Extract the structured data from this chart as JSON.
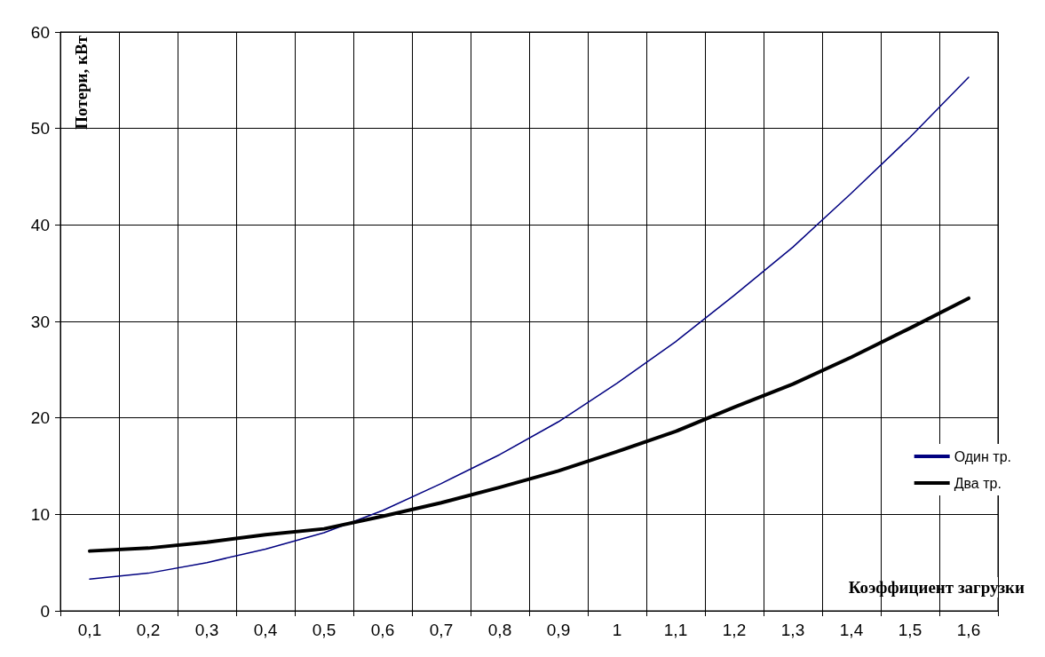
{
  "chart_data": {
    "type": "line",
    "xlabel": "Коэффициент загрузки",
    "ylabel": "Потери, кВт",
    "categories": [
      "0,1",
      "0,2",
      "0,3",
      "0,4",
      "0,5",
      "0,6",
      "0,7",
      "0,8",
      "0,9",
      "1",
      "1,1",
      "1,2",
      "1,3",
      "1,4",
      "1,5",
      "1,6"
    ],
    "series": [
      {
        "name": "Один тр.",
        "color": "#000080",
        "values": [
          3.3,
          3.9,
          5.0,
          6.4,
          8.1,
          10.4,
          13.2,
          16.2,
          19.6,
          23.6,
          27.9,
          32.7,
          37.7,
          43.3,
          49.1,
          55.3
        ]
      },
      {
        "name": "Два тр.",
        "color": "#000000",
        "values": [
          6.2,
          6.5,
          7.1,
          7.9,
          8.5,
          9.8,
          11.2,
          12.8,
          14.5,
          16.5,
          18.6,
          21.1,
          23.5,
          26.3,
          29.3,
          32.4
        ]
      }
    ],
    "ylim": [
      0,
      60
    ],
    "yticks": [
      0,
      10,
      20,
      30,
      40,
      50,
      60
    ],
    "grid": true,
    "legend": "right",
    "marker": "none",
    "line_style": "solid"
  }
}
